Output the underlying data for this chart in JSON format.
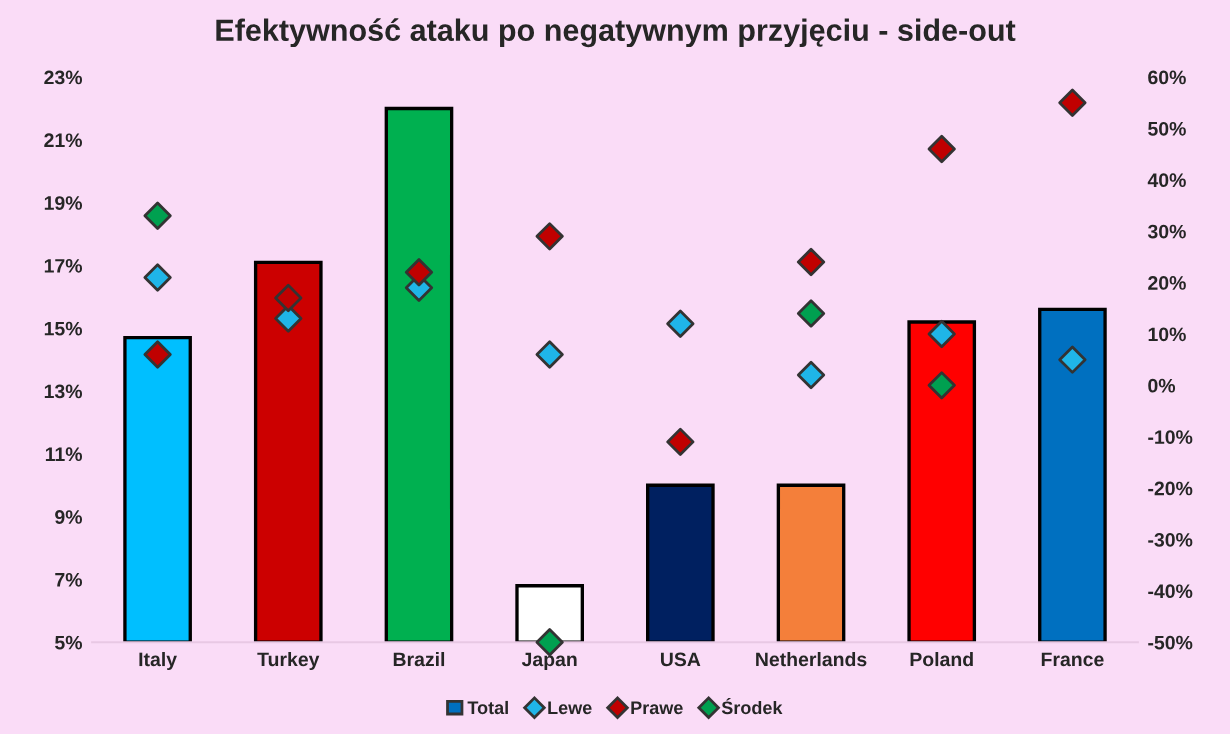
{
  "chart_data": {
    "type": "bar",
    "title": "Efektywność ataku po negatywnym przyjęciu - side-out",
    "categories": [
      "Italy",
      "Turkey",
      "Brazil",
      "Japan",
      "USA",
      "Netherlands",
      "Poland",
      "France"
    ],
    "series": [
      {
        "name": "Total",
        "color": "#0070c0",
        "colors": [
          "#00bfff",
          "#cc0000",
          "#00b050",
          "#ffffff",
          "#002060",
          "#f47f3a",
          "#ff0000",
          "#0070c0"
        ],
        "values": [
          14.7,
          17.1,
          22.0,
          6.8,
          10.0,
          10.0,
          15.2,
          15.6
        ]
      },
      {
        "name": "Lewe",
        "type": "scatter",
        "axis": "y2",
        "color": "#1fb5e8",
        "values": [
          21,
          13,
          19,
          6,
          12,
          2,
          10,
          5
        ]
      },
      {
        "name": "Prawe",
        "type": "scatter",
        "axis": "y2",
        "color": "#c00000",
        "values": [
          6,
          17,
          22,
          29,
          -11,
          24,
          46,
          55
        ]
      },
      {
        "name": "Środek",
        "type": "scatter",
        "axis": "y2",
        "color": "#00a050",
        "values": [
          33,
          null,
          null,
          -50,
          null,
          14,
          0,
          null
        ]
      }
    ],
    "ylim": [
      5,
      23
    ],
    "yticks": [
      {
        "value": 5,
        "label": "5%"
      },
      {
        "value": 7,
        "label": "7%"
      },
      {
        "value": 9,
        "label": "9%"
      },
      {
        "value": 11,
        "label": "11%"
      },
      {
        "value": 13,
        "label": "13%"
      },
      {
        "value": 15,
        "label": "15%"
      },
      {
        "value": 17,
        "label": "17%"
      },
      {
        "value": 19,
        "label": "19%"
      },
      {
        "value": 21,
        "label": "21%"
      },
      {
        "value": 23,
        "label": "23%"
      }
    ],
    "y2lim": [
      -50,
      60
    ],
    "y2ticks": [
      {
        "value": -50,
        "label": "-50%"
      },
      {
        "value": -40,
        "label": "-40%"
      },
      {
        "value": -30,
        "label": "-30%"
      },
      {
        "value": -20,
        "label": "-20%"
      },
      {
        "value": -10,
        "label": "-10%"
      },
      {
        "value": 0,
        "label": "0%"
      },
      {
        "value": 10,
        "label": "10%"
      },
      {
        "value": 20,
        "label": "20%"
      },
      {
        "value": 30,
        "label": "30%"
      },
      {
        "value": 40,
        "label": "40%"
      },
      {
        "value": 50,
        "label": "50%"
      },
      {
        "value": 60,
        "label": "60%"
      }
    ],
    "marker": "diamond",
    "grid": false,
    "legend": "bottom"
  }
}
